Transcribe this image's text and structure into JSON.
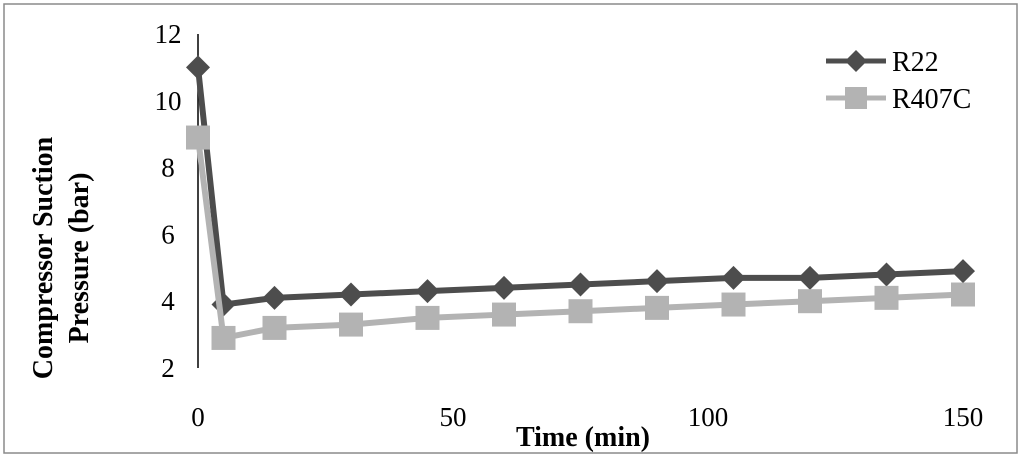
{
  "chart_data": {
    "type": "line",
    "xlabel": "Time (min)",
    "ylabel_lines": [
      "Compressor Suction",
      "Pressure (bar)"
    ],
    "xlim": [
      0,
      150
    ],
    "ylim": [
      2,
      12
    ],
    "xticks": [
      0,
      50,
      100,
      150
    ],
    "yticks": [
      2,
      4,
      6,
      8,
      10,
      12
    ],
    "grid": false,
    "legend_position": "top-right",
    "series": [
      {
        "name": "R22",
        "color": "#4d4d4d",
        "marker": "diamond",
        "x": [
          0,
          5,
          15,
          30,
          45,
          60,
          75,
          90,
          105,
          120,
          135,
          150
        ],
        "y": [
          11.0,
          3.9,
          4.1,
          4.2,
          4.3,
          4.4,
          4.5,
          4.6,
          4.7,
          4.7,
          4.8,
          4.9
        ]
      },
      {
        "name": "R407C",
        "color": "#b3b3b3",
        "marker": "square",
        "x": [
          0,
          5,
          15,
          30,
          45,
          60,
          75,
          90,
          105,
          120,
          135,
          150
        ],
        "y": [
          8.9,
          2.9,
          3.2,
          3.3,
          3.5,
          3.6,
          3.7,
          3.8,
          3.9,
          4.0,
          4.1,
          4.2
        ]
      }
    ]
  }
}
